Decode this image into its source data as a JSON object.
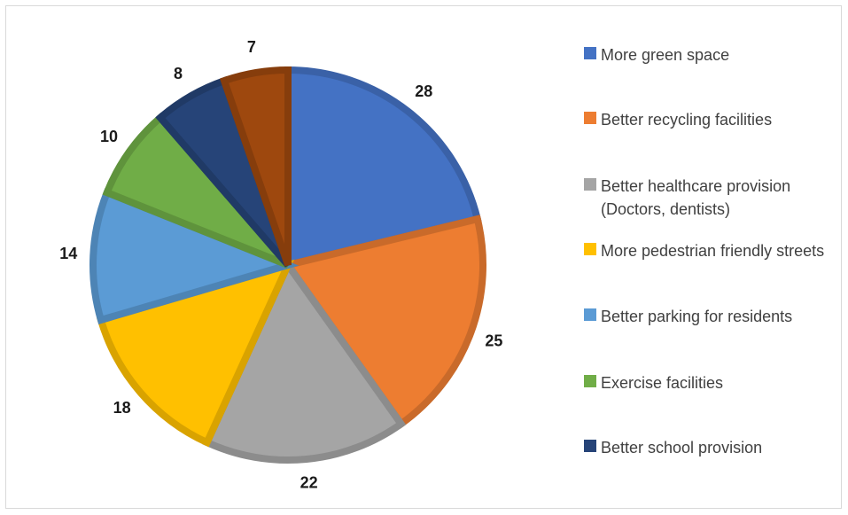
{
  "chart_data": {
    "type": "pie",
    "categories": [
      "More green space",
      "Better recycling facilities",
      "Better healthcare provision (Doctors, dentists)",
      "More pedestrian friendly streets",
      "Better parking for residents",
      "Exercise facilities",
      "Better school provision",
      ""
    ],
    "values": [
      28,
      25,
      22,
      18,
      14,
      10,
      8,
      7
    ],
    "labels": [
      "28",
      "25",
      "22",
      "18",
      "14",
      "10",
      "8",
      "7"
    ],
    "colors": [
      "#4472C4",
      "#ED7D31",
      "#A5A5A5",
      "#FFC000",
      "#5B9BD5",
      "#70AD47",
      "#264478",
      "#9E480E"
    ],
    "legend_position": "right",
    "title": ""
  }
}
